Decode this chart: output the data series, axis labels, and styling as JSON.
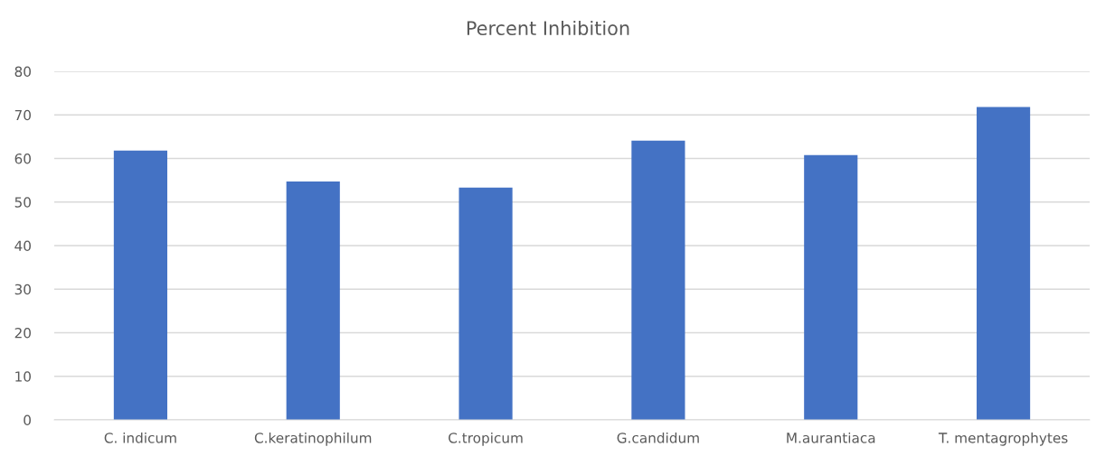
{
  "chart_data": {
    "type": "bar",
    "title": "Percent Inhibition",
    "categories": [
      "C. indicum",
      "C.keratinophilum",
      "C.tropicum",
      "G.candidum",
      "M.aurantiaca",
      "T. mentagrophytes"
    ],
    "values": [
      61.8,
      54.7,
      53.3,
      64.1,
      60.8,
      71.8
    ],
    "color": "#4472c4",
    "ylim": [
      0,
      80
    ],
    "yticks": [
      0,
      10,
      20,
      30,
      40,
      50,
      60,
      70,
      80
    ],
    "grid": "y"
  }
}
